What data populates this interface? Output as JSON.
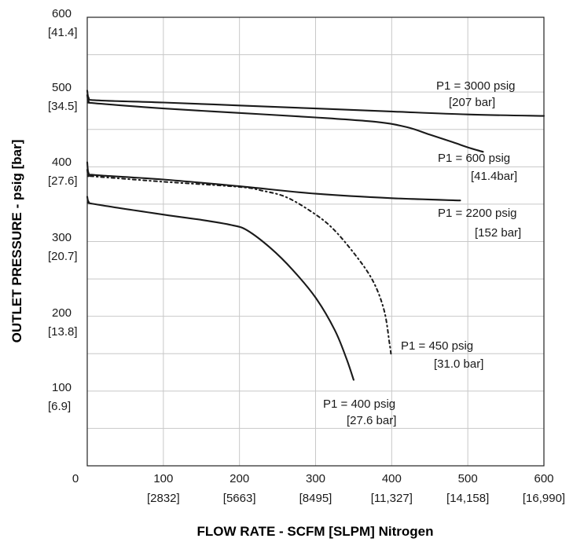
{
  "chart_data": {
    "type": "line",
    "xlabel": "FLOW RATE - SCFM [SLPM] Nitrogen",
    "ylabel": "OUTLET PRESSURE - psig [bar]",
    "xlim": [
      0,
      600
    ],
    "ylim": [
      0,
      600
    ],
    "grid": true,
    "legend": "none",
    "colors": {
      "line": "#1a1a1a",
      "grid": "#c8c8c8",
      "frame": "#222222"
    },
    "x_ticks": [
      {
        "value": 0,
        "label": "0",
        "sub": ""
      },
      {
        "value": 100,
        "label": "100",
        "sub": "[2832]"
      },
      {
        "value": 200,
        "label": "200",
        "sub": "[5663]"
      },
      {
        "value": 300,
        "label": "300",
        "sub": "[8495]"
      },
      {
        "value": 400,
        "label": "400",
        "sub": "[11,327]"
      },
      {
        "value": 500,
        "label": "500",
        "sub": "[14,158]"
      },
      {
        "value": 600,
        "label": "600",
        "sub": "[16,990]"
      }
    ],
    "y_ticks": [
      {
        "value": 100,
        "label": "100",
        "sub": "[6.9]"
      },
      {
        "value": 200,
        "label": "200",
        "sub": "[13.8]"
      },
      {
        "value": 300,
        "label": "300",
        "sub": "[20.7]"
      },
      {
        "value": 400,
        "label": "400",
        "sub": "[27.6]"
      },
      {
        "value": 500,
        "label": "500",
        "sub": "[34.5]"
      },
      {
        "value": 600,
        "label": "600",
        "sub": "[41.4]"
      }
    ],
    "series": [
      {
        "name": "P1 = 3000 psig",
        "name_sub": "[207 bar]",
        "style": "solid",
        "points": [
          [
            0,
            502
          ],
          [
            2,
            492
          ],
          [
            10,
            489
          ],
          [
            100,
            486
          ],
          [
            200,
            482
          ],
          [
            300,
            478
          ],
          [
            400,
            474
          ],
          [
            500,
            470
          ],
          [
            600,
            468
          ]
        ]
      },
      {
        "name": "P1 = 600 psig",
        "name_sub": "[41.4bar]",
        "style": "solid",
        "points": [
          [
            0,
            496
          ],
          [
            2,
            487
          ],
          [
            10,
            485
          ],
          [
            100,
            478
          ],
          [
            200,
            472
          ],
          [
            300,
            466
          ],
          [
            380,
            460
          ],
          [
            420,
            453
          ],
          [
            450,
            443
          ],
          [
            480,
            433
          ],
          [
            500,
            426
          ],
          [
            520,
            420
          ]
        ]
      },
      {
        "name": "P1 = 2200 psig",
        "name_sub": "[152 bar]",
        "style": "solid",
        "points": [
          [
            0,
            406
          ],
          [
            2,
            391
          ],
          [
            10,
            389
          ],
          [
            100,
            383
          ],
          [
            200,
            374
          ],
          [
            300,
            364
          ],
          [
            400,
            358
          ],
          [
            490,
            355
          ]
        ]
      },
      {
        "name": "P1 = 450 psig",
        "name_sub": "[31.0 bar]",
        "style": "dashdot",
        "points": [
          [
            0,
            396
          ],
          [
            2,
            388
          ],
          [
            10,
            387
          ],
          [
            100,
            380
          ],
          [
            200,
            373
          ],
          [
            230,
            368
          ],
          [
            260,
            360
          ],
          [
            290,
            343
          ],
          [
            320,
            320
          ],
          [
            350,
            285
          ],
          [
            375,
            248
          ],
          [
            390,
            208
          ],
          [
            397,
            165
          ],
          [
            399,
            150
          ]
        ]
      },
      {
        "name": "P1 = 400 psig",
        "name_sub": "[27.6 bar]",
        "style": "solid",
        "points": [
          [
            0,
            360
          ],
          [
            2,
            353
          ],
          [
            10,
            350
          ],
          [
            100,
            336
          ],
          [
            150,
            329
          ],
          [
            190,
            322
          ],
          [
            210,
            315
          ],
          [
            240,
            292
          ],
          [
            270,
            262
          ],
          [
            300,
            225
          ],
          [
            325,
            182
          ],
          [
            340,
            145
          ],
          [
            350,
            115
          ]
        ]
      }
    ],
    "annotations": [
      {
        "text": "P1 = 3000 psig",
        "text2": "[207 bar]"
      },
      {
        "text": "P1 = 600 psig",
        "text2": "[41.4bar]"
      },
      {
        "text": "P1 = 2200 psig",
        "text2": "[152 bar]"
      },
      {
        "text": "P1 = 450 psig",
        "text2": "[31.0 bar]"
      },
      {
        "text": "P1 = 400 psig",
        "text2": "[27.6 bar]"
      }
    ]
  }
}
